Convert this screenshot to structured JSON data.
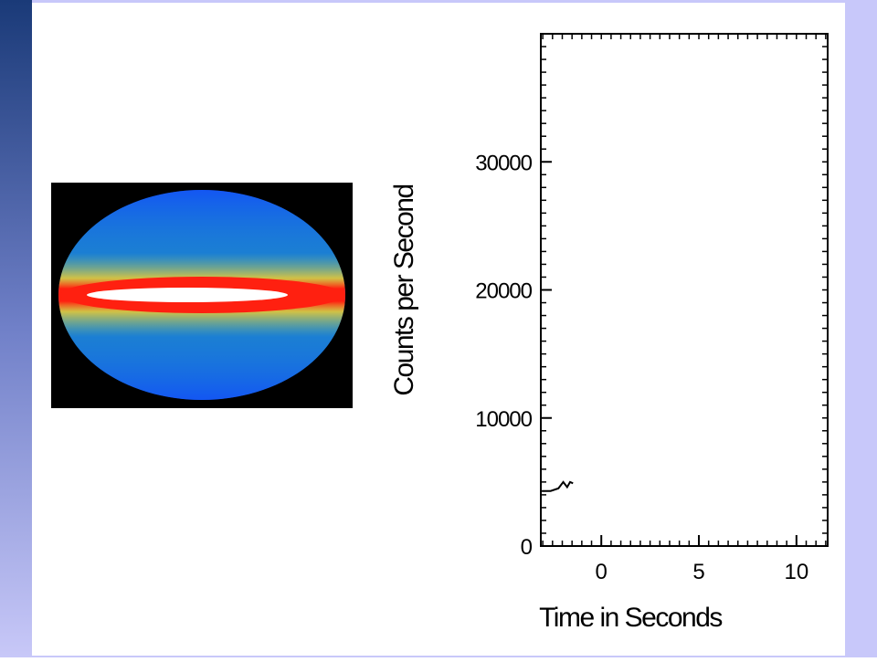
{
  "chart_data": {
    "type": "line",
    "x_label": "Time in Seconds",
    "y_label": "Counts per Second",
    "xlim": [
      -3.1,
      11.6
    ],
    "xticks": [
      0,
      5,
      10
    ],
    "ylim": [
      0,
      40000
    ],
    "yticks": [
      0,
      10000,
      20000,
      30000
    ],
    "x": [
      -3.05,
      -2.6,
      -2.2,
      -1.95,
      -1.75,
      -1.6,
      -1.45
    ],
    "series": [
      {
        "values": [
          4300,
          4300,
          4500,
          5000,
          4600,
          5000,
          4900
        ],
        "color": "#000000"
      }
    ],
    "grid": false
  }
}
